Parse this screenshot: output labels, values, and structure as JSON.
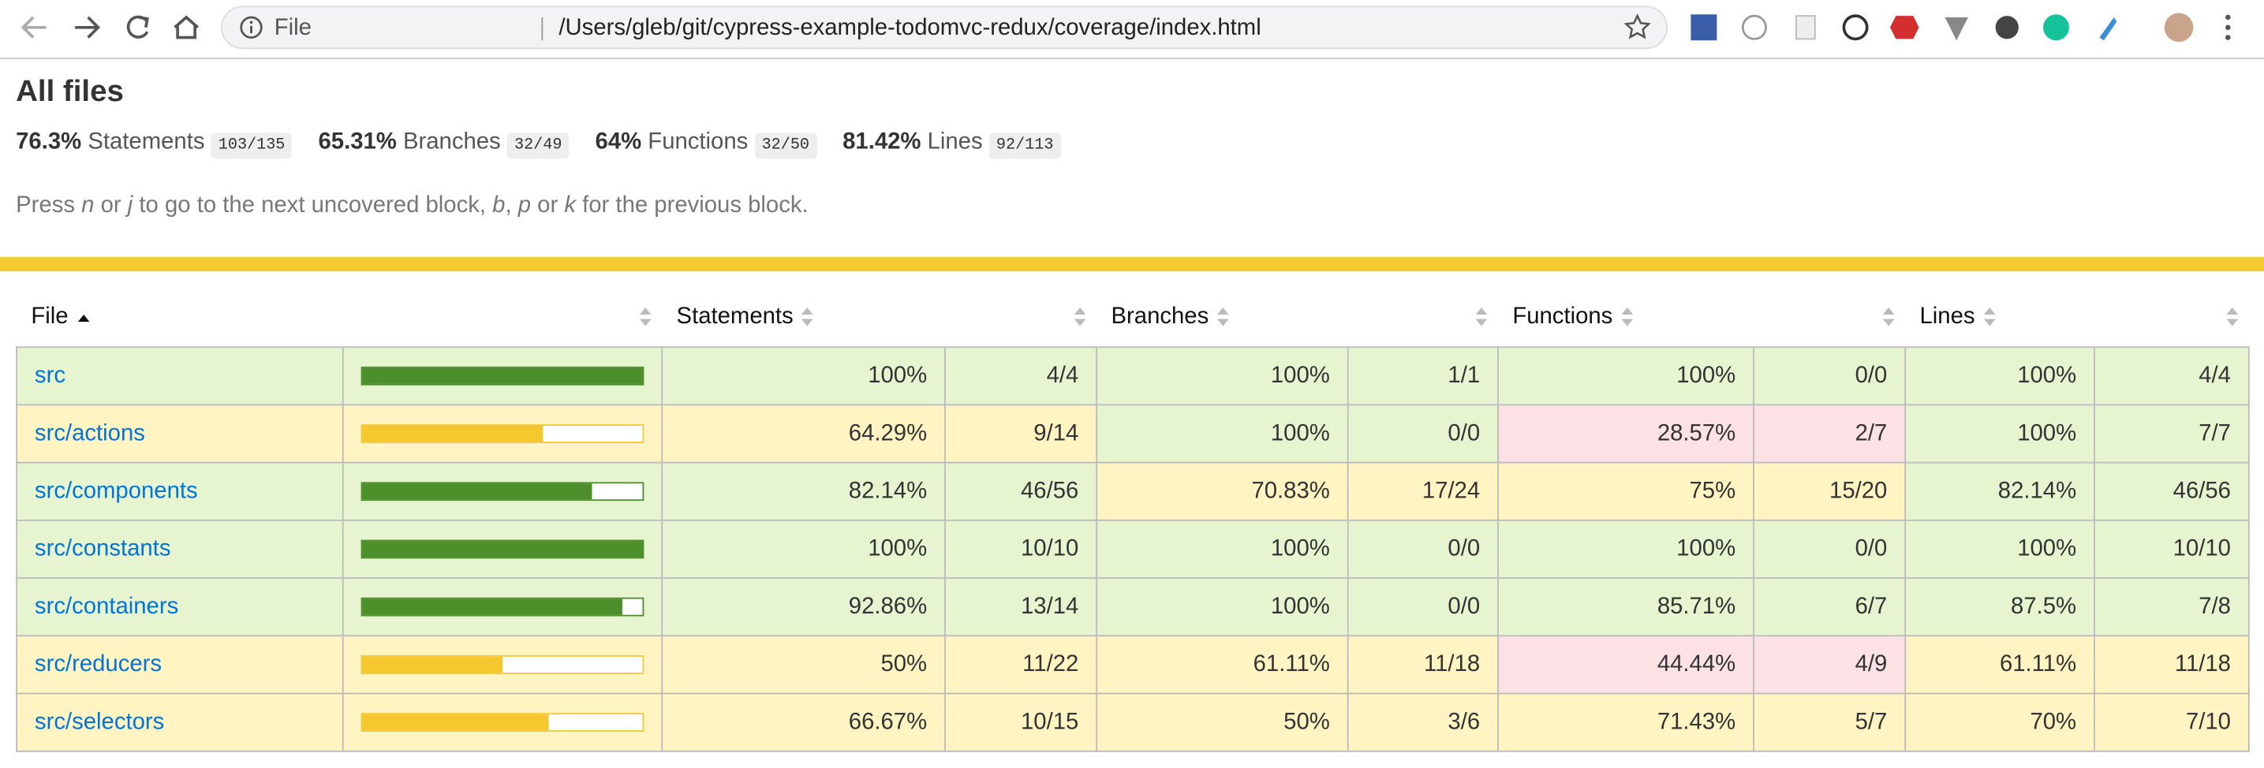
{
  "browser": {
    "file_label": "File",
    "url": "/Users/gleb/git/cypress-example-todomvc-redux/coverage/index.html"
  },
  "header": {
    "title": "All files",
    "summary": [
      {
        "pct": "76.3%",
        "label": "Statements",
        "fraction": "103/135"
      },
      {
        "pct": "65.31%",
        "label": "Branches",
        "fraction": "32/49"
      },
      {
        "pct": "64%",
        "label": "Functions",
        "fraction": "32/50"
      },
      {
        "pct": "81.42%",
        "label": "Lines",
        "fraction": "92/113"
      }
    ],
    "help": [
      "Press ",
      "n",
      " or ",
      "j",
      " to go to the next uncovered block, ",
      "b",
      ", ",
      "p",
      " or ",
      "k",
      " for the previous block."
    ]
  },
  "table": {
    "headers": [
      "File",
      "Statements",
      "Branches",
      "Functions",
      "Lines"
    ],
    "rows": [
      [
        "src",
        "100%",
        "4/4",
        "100%",
        "1/1",
        "100%",
        "0/0",
        "100%",
        "4/4"
      ],
      [
        "src/actions",
        "64.29%",
        "9/14",
        "100%",
        "0/0",
        "28.57%",
        "2/7",
        "100%",
        "7/7"
      ],
      [
        "src/components",
        "82.14%",
        "46/56",
        "70.83%",
        "17/24",
        "75%",
        "15/20",
        "82.14%",
        "46/56"
      ],
      [
        "src/constants",
        "100%",
        "10/10",
        "100%",
        "0/0",
        "100%",
        "0/0",
        "100%",
        "10/10"
      ],
      [
        "src/containers",
        "92.86%",
        "13/14",
        "100%",
        "0/0",
        "85.71%",
        "6/7",
        "87.5%",
        "7/8"
      ],
      [
        "src/reducers",
        "50%",
        "11/22",
        "61.11%",
        "11/18",
        "44.44%",
        "4/9",
        "61.11%",
        "11/18"
      ],
      [
        "src/selectors",
        "66.67%",
        "10/15",
        "50%",
        "3/6",
        "71.43%",
        "5/7",
        "70%",
        "7/10"
      ]
    ]
  }
}
